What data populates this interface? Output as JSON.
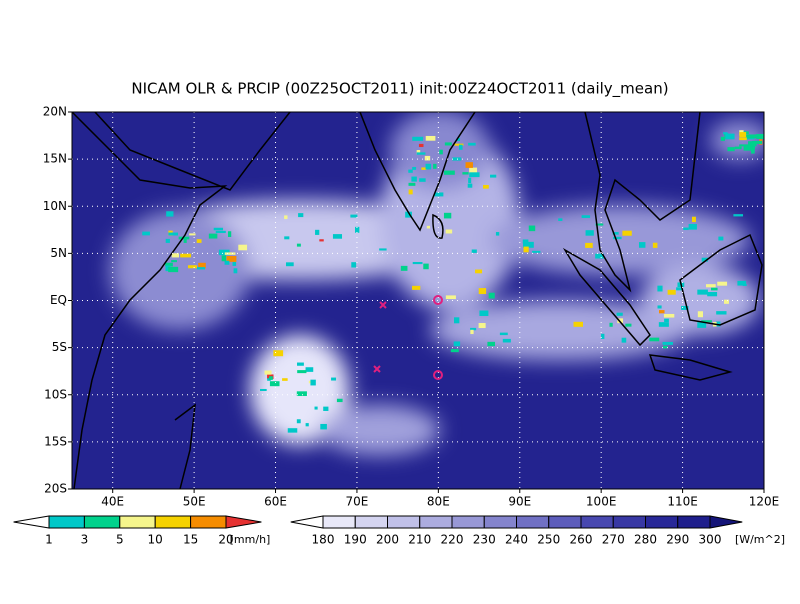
{
  "title": "NICAM OLR & PRCIP (00Z25OCT2011) init:00Z24OCT2011 (daily_mean)",
  "map": {
    "lat_labels": [
      "20N",
      "15N",
      "10N",
      "5N",
      "EQ",
      "5S",
      "10S",
      "15S",
      "20S"
    ],
    "lon_labels": [
      "40E",
      "50E",
      "60E",
      "70E",
      "80E",
      "90E",
      "100E",
      "110E",
      "120E"
    ]
  },
  "precip_legend": {
    "labels": [
      "1",
      "3",
      "5",
      "10",
      "15",
      "20"
    ],
    "unit": "[mm/h]"
  },
  "olr_legend": {
    "labels": [
      "180",
      "190",
      "200",
      "210",
      "220",
      "230",
      "240",
      "250",
      "260",
      "270",
      "280",
      "290",
      "300"
    ],
    "unit": "[W/m^2]"
  }
}
